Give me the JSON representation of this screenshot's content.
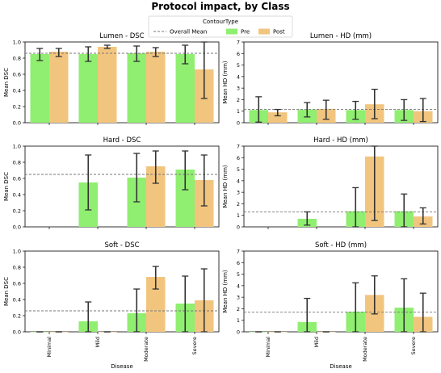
{
  "figure": {
    "title": "Protocol impact, by Class",
    "xlabel": "Disease",
    "legend": {
      "title": "ContourType",
      "overall_mean_label": "Overall Mean",
      "series": [
        "Pre",
        "Post"
      ],
      "placement": "top-center"
    }
  },
  "colors": {
    "pre": "#90ee70",
    "post": "#f2c57f",
    "mean_line": "#777777",
    "error_bar": "#333333"
  },
  "chart_data": [
    {
      "type": "bar",
      "title": "Lumen - DSC",
      "ylabel": "Mean DSC",
      "xlabel": "",
      "categories": [
        "Minimal",
        "Mild",
        "Moderate",
        "Severe"
      ],
      "ylim": [
        0,
        1.0
      ],
      "yticks": [
        "0.0",
        "0.2",
        "0.4",
        "0.6",
        "0.8",
        "1.0"
      ],
      "overall_mean": 0.86,
      "series": [
        {
          "name": "Pre",
          "values": [
            0.85,
            0.85,
            0.86,
            0.85
          ],
          "err_low": [
            0.77,
            0.76,
            0.76,
            0.73
          ],
          "err_high": [
            0.92,
            0.94,
            0.95,
            0.96
          ]
        },
        {
          "name": "Post",
          "values": [
            0.88,
            0.94,
            0.88,
            0.66
          ],
          "err_low": [
            0.82,
            0.92,
            0.82,
            0.3
          ],
          "err_high": [
            0.92,
            0.96,
            0.93,
            1.0
          ]
        }
      ]
    },
    {
      "type": "bar",
      "title": "Lumen - HD (mm)",
      "ylabel": "Mean HD (mm)",
      "xlabel": "",
      "categories": [
        "Minimal",
        "Mild",
        "Moderate",
        "Severe"
      ],
      "ylim": [
        0,
        7
      ],
      "yticks": [
        "0",
        "1",
        "2",
        "3",
        "4",
        "5",
        "6",
        "7"
      ],
      "overall_mean": 1.15,
      "series": [
        {
          "name": "Pre",
          "values": [
            1.1,
            1.15,
            1.1,
            1.1
          ],
          "err_low": [
            0.05,
            0.5,
            0.3,
            0.2
          ],
          "err_high": [
            2.25,
            1.75,
            1.85,
            2.0
          ]
        },
        {
          "name": "Post",
          "values": [
            0.9,
            1.2,
            1.6,
            1.0
          ],
          "err_low": [
            0.6,
            0.3,
            0.35,
            0.1
          ],
          "err_high": [
            1.15,
            1.95,
            2.9,
            2.1
          ]
        }
      ]
    },
    {
      "type": "bar",
      "title": "Hard - DSC",
      "ylabel": "Mean DSC",
      "xlabel": "",
      "categories": [
        "Minimal",
        "Mild",
        "Moderate",
        "Severe"
      ],
      "ylim": [
        0,
        1.0
      ],
      "yticks": [
        "0.0",
        "0.2",
        "0.4",
        "0.6",
        "0.8",
        "1.0"
      ],
      "overall_mean": 0.65,
      "series": [
        {
          "name": "Pre",
          "values": [
            null,
            0.55,
            0.61,
            0.71
          ],
          "err_low": [
            null,
            0.21,
            0.31,
            0.46
          ],
          "err_high": [
            null,
            0.89,
            0.91,
            0.94
          ]
        },
        {
          "name": "Post",
          "values": [
            null,
            null,
            0.75,
            0.58
          ],
          "err_low": [
            null,
            null,
            0.54,
            0.26
          ],
          "err_high": [
            null,
            null,
            0.94,
            0.89
          ]
        }
      ]
    },
    {
      "type": "bar",
      "title": "Hard - HD (mm)",
      "ylabel": "Mean HD (mm)",
      "xlabel": "",
      "categories": [
        "Minimal",
        "Mild",
        "Moderate",
        "Severe"
      ],
      "ylim": [
        0,
        7
      ],
      "yticks": [
        "0",
        "1",
        "2",
        "3",
        "4",
        "5",
        "6",
        "7"
      ],
      "overall_mean": 1.3,
      "series": [
        {
          "name": "Pre",
          "values": [
            null,
            0.7,
            1.35,
            1.35
          ],
          "err_low": [
            null,
            0.15,
            0.0,
            0.0
          ],
          "err_high": [
            null,
            1.3,
            3.4,
            2.85
          ]
        },
        {
          "name": "Post",
          "values": [
            null,
            null,
            6.1,
            0.9
          ],
          "err_low": [
            null,
            null,
            0.55,
            0.25
          ],
          "err_high": [
            null,
            null,
            7.0,
            1.65
          ]
        }
      ]
    },
    {
      "type": "bar",
      "title": "Soft - DSC",
      "ylabel": "Mean DSC",
      "xlabel": "Disease",
      "categories": [
        "Minimal",
        "Mild",
        "Moderate",
        "Severe"
      ],
      "ylim": [
        0,
        1.0
      ],
      "yticks": [
        "0.0",
        "0.2",
        "0.4",
        "0.6",
        "0.8",
        "1.0"
      ],
      "overall_mean": 0.26,
      "series": [
        {
          "name": "Pre",
          "values": [
            0.0,
            0.13,
            0.23,
            0.35
          ],
          "err_low": [
            0.0,
            0.0,
            0.0,
            0.0
          ],
          "err_high": [
            0.0,
            0.37,
            0.53,
            0.69
          ]
        },
        {
          "name": "Post",
          "values": [
            0.0,
            0.0,
            0.68,
            0.39
          ],
          "err_low": [
            0.0,
            0.0,
            0.53,
            0.0
          ],
          "err_high": [
            0.0,
            0.0,
            0.81,
            0.78
          ]
        }
      ]
    },
    {
      "type": "bar",
      "title": "Soft - HD (mm)",
      "ylabel": "Mean HD (mm)",
      "xlabel": "Disease",
      "categories": [
        "Minimal",
        "Mild",
        "Moderate",
        "Severe"
      ],
      "ylim": [
        0,
        7
      ],
      "yticks": [
        "0",
        "1",
        "2",
        "3",
        "4",
        "5",
        "6",
        "7"
      ],
      "overall_mean": 1.7,
      "series": [
        {
          "name": "Pre",
          "values": [
            0.0,
            0.85,
            1.75,
            2.1
          ],
          "err_low": [
            0.0,
            0.0,
            0.0,
            0.0
          ],
          "err_high": [
            0.0,
            2.9,
            4.25,
            4.6
          ]
        },
        {
          "name": "Post",
          "values": [
            0.0,
            0.0,
            3.2,
            1.3
          ],
          "err_low": [
            0.0,
            0.0,
            1.55,
            0.0
          ],
          "err_high": [
            0.0,
            0.0,
            4.85,
            3.35
          ]
        }
      ]
    }
  ]
}
